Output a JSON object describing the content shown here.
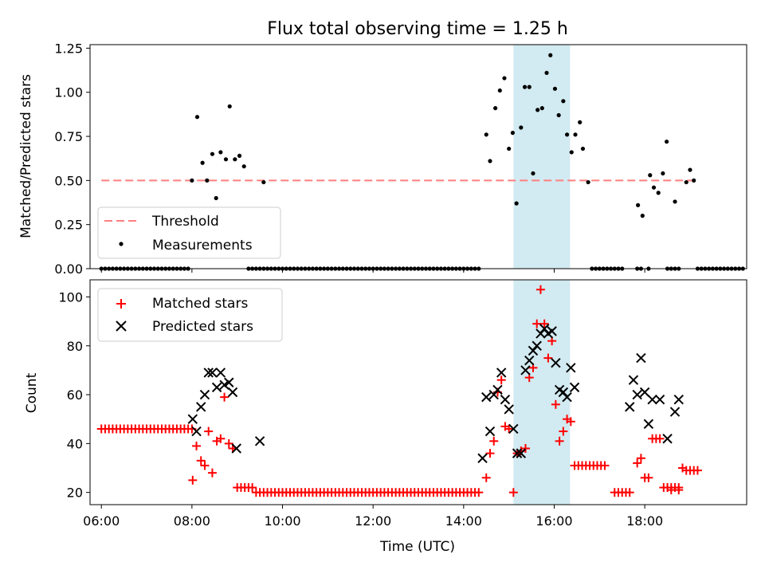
{
  "chart_data": [
    {
      "type": "scatter",
      "title": "Flux total observing time = 1.25 h",
      "xlabel": "",
      "ylabel": "Matched/Predicted stars",
      "xlim": [
        "05:45",
        "20:15"
      ],
      "ylim": [
        0,
        1.27
      ],
      "yticks": [
        "0.00",
        "0.25",
        "0.50",
        "0.75",
        "1.00",
        "1.25"
      ],
      "highlight_span": [
        "15:06",
        "16:21"
      ],
      "highlight_color": "#add8e6",
      "legend_position": "lower-left",
      "threshold": {
        "name": "Threshold",
        "y": 0.5,
        "x_range": [
          "06:00",
          "19:10"
        ],
        "color": "#ff7f7f",
        "style": "dashed"
      },
      "series": [
        {
          "name": "Measurements",
          "color": "#000000",
          "marker": "dot",
          "points": [
            [
              "08:00",
              0.5
            ],
            [
              "08:07",
              0.86
            ],
            [
              "08:14",
              0.6
            ],
            [
              "08:20",
              0.5
            ],
            [
              "08:27",
              0.65
            ],
            [
              "08:32",
              0.4
            ],
            [
              "08:38",
              0.66
            ],
            [
              "08:45",
              0.62
            ],
            [
              "08:50",
              0.92
            ],
            [
              "08:57",
              0.62
            ],
            [
              "09:03",
              0.64
            ],
            [
              "09:09",
              0.58
            ],
            [
              "09:35",
              0.49
            ],
            [
              "14:30",
              0.76
            ],
            [
              "14:35",
              0.61
            ],
            [
              "14:42",
              0.91
            ],
            [
              "14:48",
              1.01
            ],
            [
              "14:54",
              1.08
            ],
            [
              "15:00",
              0.68
            ],
            [
              "15:05",
              0.77
            ],
            [
              "15:10",
              0.37
            ],
            [
              "15:16",
              0.8
            ],
            [
              "15:21",
              1.03
            ],
            [
              "15:27",
              1.03
            ],
            [
              "15:32",
              0.54
            ],
            [
              "15:38",
              0.9
            ],
            [
              "15:44",
              0.91
            ],
            [
              "15:50",
              1.11
            ],
            [
              "15:55",
              1.21
            ],
            [
              "16:01",
              1.02
            ],
            [
              "16:06",
              0.87
            ],
            [
              "16:12",
              0.95
            ],
            [
              "16:17",
              0.76
            ],
            [
              "16:23",
              0.66
            ],
            [
              "16:28",
              0.76
            ],
            [
              "16:34",
              0.83
            ],
            [
              "16:38",
              0.68
            ],
            [
              "16:45",
              0.49
            ],
            [
              "17:51",
              0.36
            ],
            [
              "17:57",
              0.3
            ],
            [
              "18:07",
              0.53
            ],
            [
              "18:12",
              0.46
            ],
            [
              "18:18",
              0.43
            ],
            [
              "18:24",
              0.54
            ],
            [
              "18:29",
              0.72
            ],
            [
              "18:40",
              0.38
            ],
            [
              "18:55",
              0.49
            ],
            [
              "19:00",
              0.56
            ],
            [
              "19:05",
              0.5
            ]
          ],
          "zero_points": [
            "06:00",
            "06:05",
            "06:10",
            "06:15",
            "06:20",
            "06:25",
            "06:30",
            "06:35",
            "06:40",
            "06:45",
            "06:50",
            "06:55",
            "07:00",
            "07:05",
            "07:10",
            "07:15",
            "07:20",
            "07:25",
            "07:30",
            "07:35",
            "07:40",
            "07:45",
            "07:50",
            "07:55",
            "09:15",
            "09:20",
            "09:25",
            "09:30",
            "09:35",
            "09:40",
            "09:45",
            "09:50",
            "09:55",
            "10:00",
            "10:05",
            "10:10",
            "10:15",
            "10:20",
            "10:25",
            "10:30",
            "10:35",
            "10:40",
            "10:45",
            "10:50",
            "10:55",
            "11:00",
            "11:05",
            "11:10",
            "11:15",
            "11:20",
            "11:25",
            "11:30",
            "11:35",
            "11:40",
            "11:45",
            "11:50",
            "11:55",
            "12:00",
            "12:05",
            "12:10",
            "12:15",
            "12:20",
            "12:25",
            "12:30",
            "12:35",
            "12:40",
            "12:45",
            "12:50",
            "12:55",
            "13:00",
            "13:05",
            "13:10",
            "13:15",
            "13:20",
            "13:25",
            "13:30",
            "13:35",
            "13:40",
            "13:45",
            "13:50",
            "13:55",
            "14:00",
            "14:05",
            "14:10",
            "14:15",
            "14:20",
            "16:50",
            "16:55",
            "17:00",
            "17:05",
            "17:10",
            "17:15",
            "17:20",
            "17:25",
            "17:30",
            "17:50",
            "17:55",
            "18:05",
            "18:30",
            "18:35",
            "18:40",
            "18:45",
            "19:10",
            "19:15",
            "19:20",
            "19:25",
            "19:30",
            "19:35",
            "19:40",
            "19:45",
            "19:50",
            "19:55",
            "20:00",
            "20:05",
            "20:10"
          ]
        }
      ]
    },
    {
      "type": "scatter",
      "xlabel": "Time (UTC)",
      "ylabel": "Count",
      "xlim": [
        "05:45",
        "20:15"
      ],
      "ylim": [
        15,
        107
      ],
      "yticks": [
        "20",
        "40",
        "60",
        "80",
        "100"
      ],
      "xticks": [
        "06:00",
        "08:00",
        "10:00",
        "12:00",
        "14:00",
        "16:00",
        "18:00"
      ],
      "highlight_span": [
        "15:06",
        "16:21"
      ],
      "highlight_color": "#add8e6",
      "legend_position": "upper-left",
      "series": [
        {
          "name": "Matched stars",
          "color": "#ff0000",
          "marker": "plus",
          "points": [
            [
              "08:01",
              25
            ],
            [
              "08:06",
              39
            ],
            [
              "08:12",
              33
            ],
            [
              "08:17",
              31
            ],
            [
              "08:22",
              45
            ],
            [
              "08:27",
              28
            ],
            [
              "08:33",
              41
            ],
            [
              "08:38",
              42
            ],
            [
              "08:43",
              59
            ],
            [
              "08:49",
              40
            ],
            [
              "08:54",
              38
            ],
            [
              "14:30",
              26
            ],
            [
              "14:35",
              36
            ],
            [
              "14:40",
              41
            ],
            [
              "14:45",
              61
            ],
            [
              "14:50",
              66
            ],
            [
              "14:55",
              47
            ],
            [
              "15:00",
              46
            ],
            [
              "15:06",
              20
            ],
            [
              "15:11",
              36
            ],
            [
              "15:16",
              37
            ],
            [
              "15:22",
              38
            ],
            [
              "15:27",
              67
            ],
            [
              "15:32",
              71
            ],
            [
              "15:37",
              89
            ],
            [
              "15:42",
              103
            ],
            [
              "15:47",
              89
            ],
            [
              "15:52",
              75
            ],
            [
              "15:57",
              82
            ],
            [
              "16:02",
              56
            ],
            [
              "16:07",
              41
            ],
            [
              "16:12",
              45
            ],
            [
              "16:17",
              50
            ],
            [
              "16:22",
              49
            ],
            [
              "17:50",
              32
            ],
            [
              "17:55",
              34
            ],
            [
              "18:00",
              26
            ],
            [
              "18:05",
              26
            ],
            [
              "18:10",
              42
            ],
            [
              "18:15",
              42
            ],
            [
              "18:20",
              42
            ],
            [
              "18:30",
              22
            ],
            [
              "18:35",
              21
            ],
            [
              "18:45",
              21
            ],
            [
              "18:50",
              30
            ]
          ],
          "flat_runs": [
            {
              "from": "06:00",
              "to": "08:00",
              "step": 5,
              "value": 46
            },
            {
              "from": "09:00",
              "to": "09:20",
              "step": 5,
              "value": 22
            },
            {
              "from": "09:25",
              "to": "14:20",
              "step": 5,
              "value": 20
            },
            {
              "from": "16:27",
              "to": "17:10",
              "step": 5,
              "value": 31
            },
            {
              "from": "17:20",
              "to": "17:40",
              "step": 5,
              "value": 20
            },
            {
              "from": "18:25",
              "to": "18:45",
              "step": 5,
              "value": 22
            },
            {
              "from": "18:55",
              "to": "19:10",
              "step": 5,
              "value": 29
            }
          ]
        },
        {
          "name": "Predicted stars",
          "color": "#000000",
          "marker": "x",
          "points": [
            [
              "08:01",
              50
            ],
            [
              "08:06",
              45
            ],
            [
              "08:12",
              55
            ],
            [
              "08:17",
              60
            ],
            [
              "08:22",
              69
            ],
            [
              "08:27",
              69
            ],
            [
              "08:33",
              63
            ],
            [
              "08:38",
              69
            ],
            [
              "08:43",
              64
            ],
            [
              "08:49",
              65
            ],
            [
              "08:54",
              61
            ],
            [
              "08:59",
              38
            ],
            [
              "09:30",
              41
            ],
            [
              "14:25",
              34
            ],
            [
              "14:30",
              59
            ],
            [
              "14:35",
              45
            ],
            [
              "14:40",
              60
            ],
            [
              "14:45",
              62
            ],
            [
              "14:50",
              69
            ],
            [
              "14:55",
              58
            ],
            [
              "15:00",
              54
            ],
            [
              "15:06",
              46
            ],
            [
              "15:11",
              36
            ],
            [
              "15:16",
              36
            ],
            [
              "15:22",
              70
            ],
            [
              "15:27",
              74
            ],
            [
              "15:32",
              78
            ],
            [
              "15:37",
              80
            ],
            [
              "15:42",
              85
            ],
            [
              "15:47",
              87
            ],
            [
              "15:52",
              85
            ],
            [
              "15:57",
              86
            ],
            [
              "16:02",
              73
            ],
            [
              "16:07",
              62
            ],
            [
              "16:12",
              61
            ],
            [
              "16:17",
              59
            ],
            [
              "16:22",
              71
            ],
            [
              "16:27",
              63
            ],
            [
              "17:40",
              55
            ],
            [
              "17:45",
              66
            ],
            [
              "17:50",
              60
            ],
            [
              "17:55",
              75
            ],
            [
              "18:00",
              61
            ],
            [
              "18:05",
              48
            ],
            [
              "18:10",
              58
            ],
            [
              "18:20",
              58
            ],
            [
              "18:30",
              42
            ],
            [
              "18:40",
              53
            ],
            [
              "18:45",
              58
            ]
          ]
        }
      ]
    }
  ]
}
